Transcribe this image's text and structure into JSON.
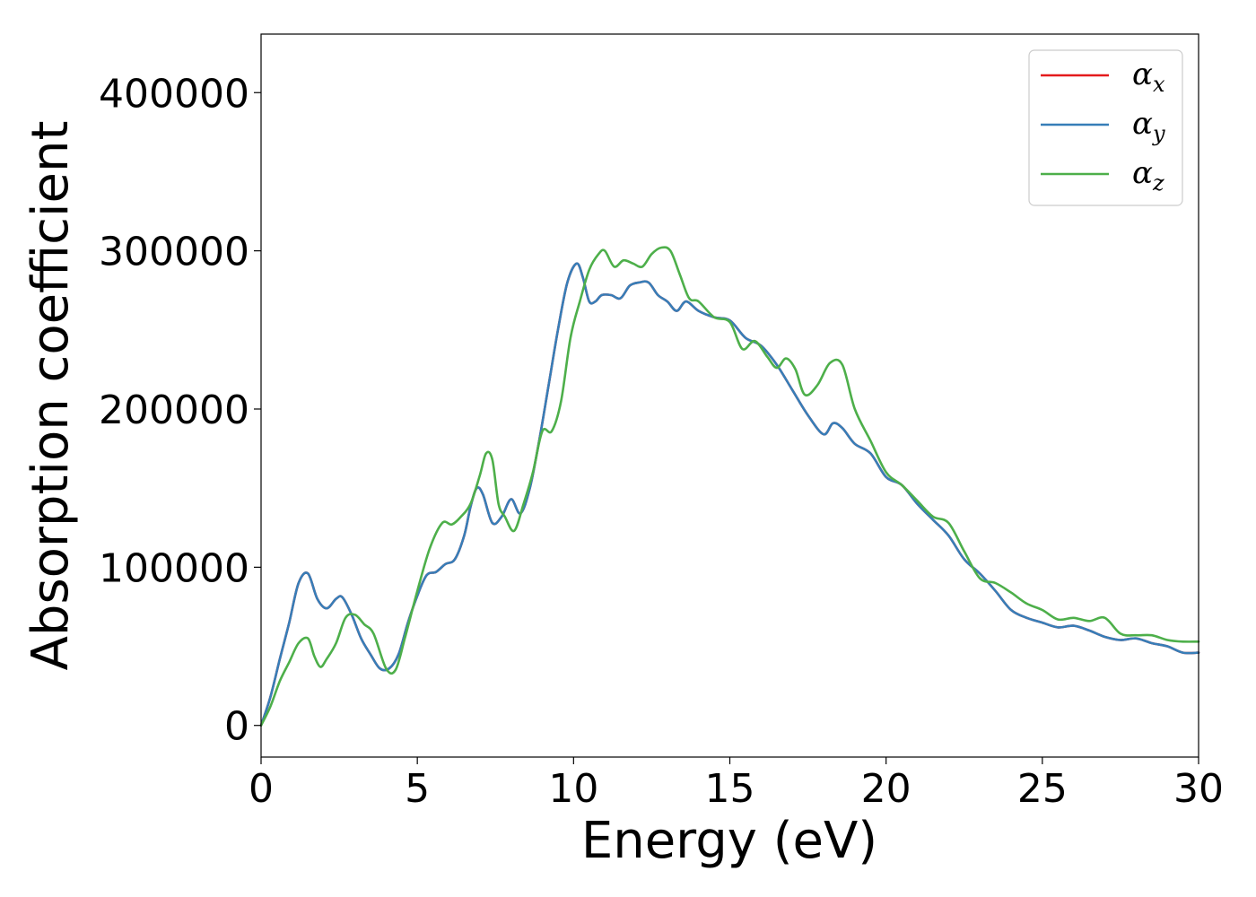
{
  "chart_data": {
    "type": "line",
    "xlabel": "Energy (eV)",
    "ylabel": "Absorption coefficient",
    "xlim": [
      0,
      30
    ],
    "ylim": [
      -20000,
      437000
    ],
    "xticks": [
      0,
      5,
      10,
      15,
      20,
      25,
      30
    ],
    "yticks": [
      0,
      100000,
      200000,
      300000,
      400000
    ],
    "xtick_labels": [
      "0",
      "5",
      "10",
      "15",
      "20",
      "25",
      "30"
    ],
    "ytick_labels": [
      "0",
      "100000",
      "200000",
      "300000",
      "400000"
    ],
    "grid": false,
    "legend_position": "top-right",
    "series": [
      {
        "name": "α",
        "subscript": "x",
        "color": "#e41a1c",
        "x": [
          0,
          0.3,
          0.6,
          0.9,
          1.2,
          1.5,
          1.8,
          2.1,
          2.4,
          2.6,
          2.9,
          3.2,
          3.5,
          3.8,
          4.1,
          4.4,
          4.7,
          5.0,
          5.3,
          5.6,
          5.9,
          6.2,
          6.5,
          6.7,
          6.9,
          7.1,
          7.4,
          7.7,
          8.0,
          8.3,
          8.6,
          8.9,
          9.2,
          9.5,
          9.8,
          10.1,
          10.3,
          10.5,
          10.7,
          10.9,
          11.2,
          11.5,
          11.8,
          12.1,
          12.4,
          12.7,
          13.0,
          13.3,
          13.6,
          14.0,
          14.5,
          15.0,
          15.5,
          16.0,
          16.5,
          17.0,
          17.5,
          18.0,
          18.3,
          18.6,
          19.0,
          19.5,
          20.0,
          20.5,
          21.0,
          21.5,
          22.0,
          22.5,
          23.0,
          23.5,
          24.0,
          24.5,
          25.0,
          25.5,
          26.0,
          26.5,
          27.0,
          27.5,
          28.0,
          28.5,
          29.0,
          29.5,
          30.0
        ],
        "values": [
          0,
          18000,
          42000,
          65000,
          90000,
          96000,
          80000,
          74000,
          80000,
          81000,
          70000,
          55000,
          45000,
          36000,
          36000,
          45000,
          65000,
          82000,
          95000,
          97000,
          102000,
          105000,
          120000,
          138000,
          150000,
          146000,
          128000,
          132000,
          143000,
          134000,
          150000,
          180000,
          215000,
          250000,
          280000,
          292000,
          283000,
          268000,
          268000,
          272000,
          272000,
          270000,
          278000,
          280000,
          280000,
          272000,
          268000,
          262000,
          268000,
          262000,
          258000,
          256000,
          245000,
          240000,
          228000,
          212000,
          196000,
          184000,
          191000,
          188000,
          178000,
          172000,
          157000,
          152000,
          140000,
          130000,
          120000,
          105000,
          96000,
          85000,
          73000,
          68000,
          65000,
          62000,
          63000,
          60000,
          56000,
          54000,
          55000,
          52000,
          50000,
          46000,
          46000
        ]
      },
      {
        "name": "α",
        "subscript": "y",
        "color": "#377eb8",
        "x": [
          0,
          0.3,
          0.6,
          0.9,
          1.2,
          1.5,
          1.8,
          2.1,
          2.4,
          2.6,
          2.9,
          3.2,
          3.5,
          3.8,
          4.1,
          4.4,
          4.7,
          5.0,
          5.3,
          5.6,
          5.9,
          6.2,
          6.5,
          6.7,
          6.9,
          7.1,
          7.4,
          7.7,
          8.0,
          8.3,
          8.6,
          8.9,
          9.2,
          9.5,
          9.8,
          10.1,
          10.3,
          10.5,
          10.7,
          10.9,
          11.2,
          11.5,
          11.8,
          12.1,
          12.4,
          12.7,
          13.0,
          13.3,
          13.6,
          14.0,
          14.5,
          15.0,
          15.5,
          16.0,
          16.5,
          17.0,
          17.5,
          18.0,
          18.3,
          18.6,
          19.0,
          19.5,
          20.0,
          20.5,
          21.0,
          21.5,
          22.0,
          22.5,
          23.0,
          23.5,
          24.0,
          24.5,
          25.0,
          25.5,
          26.0,
          26.5,
          27.0,
          27.5,
          28.0,
          28.5,
          29.0,
          29.5,
          30.0
        ],
        "values": [
          0,
          18000,
          42000,
          65000,
          90000,
          96000,
          80000,
          74000,
          80000,
          81000,
          70000,
          55000,
          45000,
          36000,
          36000,
          45000,
          65000,
          82000,
          95000,
          97000,
          102000,
          105000,
          120000,
          138000,
          150000,
          146000,
          128000,
          132000,
          143000,
          134000,
          150000,
          180000,
          215000,
          250000,
          280000,
          292000,
          283000,
          268000,
          268000,
          272000,
          272000,
          270000,
          278000,
          280000,
          280000,
          272000,
          268000,
          262000,
          268000,
          262000,
          258000,
          256000,
          245000,
          240000,
          228000,
          212000,
          196000,
          184000,
          191000,
          188000,
          178000,
          172000,
          157000,
          152000,
          140000,
          130000,
          120000,
          105000,
          96000,
          85000,
          73000,
          68000,
          65000,
          62000,
          63000,
          60000,
          56000,
          54000,
          55000,
          52000,
          50000,
          46000,
          46000
        ]
      },
      {
        "name": "α",
        "subscript": "z",
        "color": "#4daf4a",
        "x": [
          0,
          0.3,
          0.6,
          0.9,
          1.2,
          1.5,
          1.7,
          1.9,
          2.1,
          2.4,
          2.7,
          3.0,
          3.3,
          3.6,
          4.0,
          4.3,
          4.6,
          5.0,
          5.4,
          5.8,
          6.1,
          6.4,
          6.7,
          7.0,
          7.2,
          7.4,
          7.6,
          7.8,
          8.1,
          8.4,
          8.7,
          9.0,
          9.3,
          9.6,
          9.9,
          10.2,
          10.5,
          10.8,
          11.0,
          11.3,
          11.6,
          11.9,
          12.2,
          12.5,
          12.8,
          13.1,
          13.4,
          13.7,
          14.0,
          14.5,
          15.0,
          15.4,
          15.8,
          16.2,
          16.5,
          16.8,
          17.1,
          17.4,
          17.8,
          18.2,
          18.6,
          19.0,
          19.5,
          20.0,
          20.5,
          21.0,
          21.5,
          22.0,
          22.5,
          23.0,
          23.5,
          24.0,
          24.5,
          25.0,
          25.5,
          26.0,
          26.5,
          27.0,
          27.5,
          28.0,
          28.5,
          29.0,
          29.5,
          30.0
        ],
        "values": [
          0,
          12000,
          28000,
          40000,
          52000,
          55000,
          44000,
          37000,
          42000,
          52000,
          68000,
          70000,
          64000,
          58000,
          36000,
          35000,
          55000,
          85000,
          112000,
          128000,
          127000,
          132000,
          140000,
          158000,
          172000,
          168000,
          140000,
          132000,
          123000,
          140000,
          160000,
          186000,
          186000,
          205000,
          245000,
          268000,
          288000,
          298000,
          300000,
          290000,
          294000,
          292000,
          290000,
          298000,
          302000,
          300000,
          285000,
          270000,
          268000,
          258000,
          255000,
          238000,
          243000,
          233000,
          226000,
          232000,
          225000,
          209000,
          215000,
          229000,
          228000,
          200000,
          180000,
          160000,
          152000,
          142000,
          132000,
          128000,
          110000,
          93000,
          90000,
          84000,
          77000,
          73000,
          67000,
          68000,
          66000,
          68000,
          58000,
          57000,
          57000,
          54000,
          53000,
          53000
        ]
      }
    ]
  }
}
